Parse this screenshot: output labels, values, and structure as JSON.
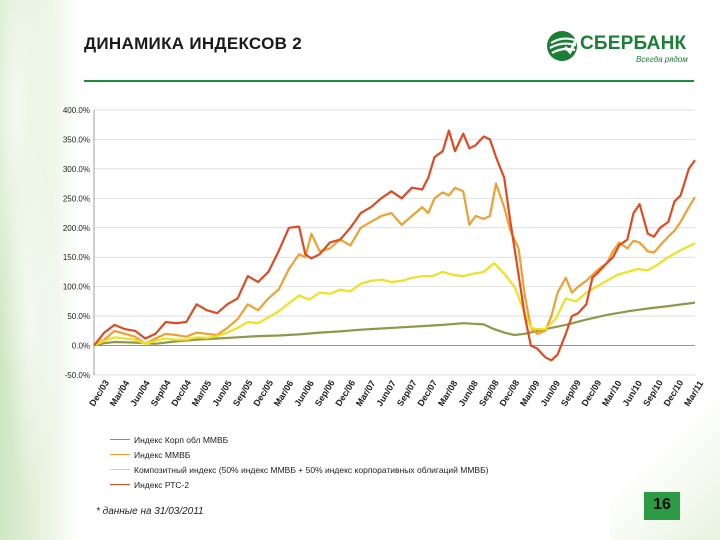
{
  "header": {
    "title": "ДИНАМИКА ИНДЕКСОВ 2",
    "brand": "СБЕРБАНК",
    "slogan": "Всегда рядом"
  },
  "colors": {
    "brand_green": "#1b7f35",
    "rule_green": "#1f8a3a",
    "badge_green": "#2d9a44"
  },
  "footnote": "* данные на 31/03/2011",
  "page_number": "16",
  "chart_data": {
    "type": "line",
    "title": "",
    "xlabel": "",
    "ylabel": "",
    "ylim": [
      -50,
      400
    ],
    "yticks": [
      "400.0%",
      "350.0%",
      "300.0%",
      "250.0%",
      "200.0%",
      "150.0%",
      "100.0%",
      "50.0%",
      "0.0%",
      "-50.0%"
    ],
    "xticks": [
      "Dec/03",
      "Mar/04",
      "Jun/04",
      "Sep/04",
      "Dec/04",
      "Mar/05",
      "Jun/05",
      "Sep/05",
      "Dec/05",
      "Mar/06",
      "Jun/06",
      "Sep/06",
      "Dec/06",
      "Mar/07",
      "Jun/07",
      "Sep/07",
      "Dec/07",
      "Mar/08",
      "Jun/08",
      "Sep/08",
      "Dec/08",
      "Mar/09",
      "Jun/09",
      "Sep/09",
      "Dec/09",
      "Mar/10",
      "Jun/10",
      "Sep/10",
      "Dec/10",
      "Mar/11"
    ],
    "x_range": [
      0,
      29.3
    ],
    "grid": "horizontal",
    "legend_position": "bottom",
    "series": [
      {
        "name": "Индекс Корп обл ММВБ",
        "color": "#8c9a48",
        "points": [
          [
            0,
            0
          ],
          [
            0.5,
            4
          ],
          [
            1,
            6
          ],
          [
            2,
            5
          ],
          [
            3,
            3
          ],
          [
            4,
            7
          ],
          [
            5,
            10
          ],
          [
            6,
            12
          ],
          [
            7,
            14
          ],
          [
            8,
            16
          ],
          [
            9,
            17
          ],
          [
            10,
            19
          ],
          [
            11,
            22
          ],
          [
            12,
            24
          ],
          [
            13,
            27
          ],
          [
            14,
            29
          ],
          [
            15,
            31
          ],
          [
            16,
            33
          ],
          [
            17,
            35
          ],
          [
            18,
            38
          ],
          [
            19,
            36
          ],
          [
            19.5,
            28
          ],
          [
            20,
            22
          ],
          [
            20.5,
            18
          ],
          [
            21,
            20
          ],
          [
            22,
            28
          ],
          [
            23,
            35
          ],
          [
            24,
            44
          ],
          [
            25,
            52
          ],
          [
            26,
            58
          ],
          [
            27,
            63
          ],
          [
            28,
            67
          ],
          [
            29.3,
            73
          ]
        ]
      },
      {
        "name": "Индекс ММВБ",
        "color": "#f0a030",
        "points": [
          [
            0,
            0
          ],
          [
            0.5,
            10
          ],
          [
            1,
            25
          ],
          [
            1.5,
            20
          ],
          [
            2,
            15
          ],
          [
            2.5,
            3
          ],
          [
            3,
            12
          ],
          [
            3.5,
            20
          ],
          [
            4,
            18
          ],
          [
            4.5,
            15
          ],
          [
            5,
            22
          ],
          [
            5.5,
            20
          ],
          [
            6,
            18
          ],
          [
            6.5,
            30
          ],
          [
            7,
            45
          ],
          [
            7.5,
            70
          ],
          [
            8,
            60
          ],
          [
            8.5,
            80
          ],
          [
            9,
            95
          ],
          [
            9.5,
            130
          ],
          [
            10,
            155
          ],
          [
            10.3,
            150
          ],
          [
            10.6,
            190
          ],
          [
            11,
            160
          ],
          [
            11.5,
            165
          ],
          [
            12,
            180
          ],
          [
            12.5,
            170
          ],
          [
            13,
            200
          ],
          [
            13.5,
            210
          ],
          [
            14,
            220
          ],
          [
            14.5,
            225
          ],
          [
            15,
            205
          ],
          [
            15.5,
            220
          ],
          [
            16,
            235
          ],
          [
            16.3,
            225
          ],
          [
            16.6,
            250
          ],
          [
            17,
            260
          ],
          [
            17.3,
            255
          ],
          [
            17.6,
            268
          ],
          [
            18,
            262
          ],
          [
            18.3,
            205
          ],
          [
            18.6,
            220
          ],
          [
            19,
            215
          ],
          [
            19.3,
            220
          ],
          [
            19.6,
            275
          ],
          [
            20,
            235
          ],
          [
            20.3,
            195
          ],
          [
            20.7,
            165
          ],
          [
            21,
            85
          ],
          [
            21.3,
            30
          ],
          [
            21.6,
            20
          ],
          [
            22,
            25
          ],
          [
            22.3,
            50
          ],
          [
            22.6,
            90
          ],
          [
            23,
            115
          ],
          [
            23.3,
            90
          ],
          [
            23.6,
            100
          ],
          [
            24,
            110
          ],
          [
            24.3,
            120
          ],
          [
            24.6,
            130
          ],
          [
            25,
            140
          ],
          [
            25.3,
            160
          ],
          [
            25.6,
            175
          ],
          [
            26,
            165
          ],
          [
            26.3,
            178
          ],
          [
            26.6,
            175
          ],
          [
            27,
            160
          ],
          [
            27.3,
            158
          ],
          [
            27.6,
            170
          ],
          [
            28,
            185
          ],
          [
            28.3,
            195
          ],
          [
            28.6,
            210
          ],
          [
            29,
            235
          ],
          [
            29.3,
            252
          ]
        ]
      },
      {
        "name": "Композитный индекс (50% индекс ММВБ + 50% индекс корпоративных облигаций ММВБ)",
        "color": "#f0e020",
        "points": [
          [
            0,
            0
          ],
          [
            0.5,
            8
          ],
          [
            1,
            14
          ],
          [
            1.5,
            12
          ],
          [
            2,
            10
          ],
          [
            2.5,
            3
          ],
          [
            3,
            8
          ],
          [
            3.5,
            12
          ],
          [
            4,
            10
          ],
          [
            4.5,
            10
          ],
          [
            5,
            14
          ],
          [
            5.5,
            13
          ],
          [
            6,
            16
          ],
          [
            6.5,
            22
          ],
          [
            7,
            30
          ],
          [
            7.5,
            40
          ],
          [
            8,
            38
          ],
          [
            8.5,
            48
          ],
          [
            9,
            58
          ],
          [
            9.5,
            72
          ],
          [
            10,
            85
          ],
          [
            10.5,
            78
          ],
          [
            11,
            90
          ],
          [
            11.5,
            88
          ],
          [
            12,
            95
          ],
          [
            12.5,
            92
          ],
          [
            13,
            105
          ],
          [
            13.5,
            110
          ],
          [
            14,
            112
          ],
          [
            14.5,
            108
          ],
          [
            15,
            110
          ],
          [
            15.5,
            115
          ],
          [
            16,
            118
          ],
          [
            16.5,
            118
          ],
          [
            17,
            125
          ],
          [
            17.5,
            120
          ],
          [
            18,
            118
          ],
          [
            18.5,
            122
          ],
          [
            19,
            125
          ],
          [
            19.5,
            140
          ],
          [
            20,
            122
          ],
          [
            20.5,
            100
          ],
          [
            21,
            55
          ],
          [
            21.3,
            30
          ],
          [
            21.6,
            28
          ],
          [
            22,
            28
          ],
          [
            22.5,
            45
          ],
          [
            23,
            80
          ],
          [
            23.5,
            75
          ],
          [
            24,
            90
          ],
          [
            24.5,
            100
          ],
          [
            25,
            110
          ],
          [
            25.5,
            120
          ],
          [
            26,
            125
          ],
          [
            26.5,
            130
          ],
          [
            27,
            128
          ],
          [
            27.5,
            138
          ],
          [
            28,
            150
          ],
          [
            28.5,
            160
          ],
          [
            29.3,
            174
          ]
        ]
      },
      {
        "name": "Индекс РТС-2",
        "color": "#e04a20",
        "points": [
          [
            0,
            0
          ],
          [
            0.5,
            22
          ],
          [
            1,
            35
          ],
          [
            1.5,
            28
          ],
          [
            2,
            25
          ],
          [
            2.5,
            12
          ],
          [
            3,
            20
          ],
          [
            3.5,
            40
          ],
          [
            4,
            38
          ],
          [
            4.5,
            40
          ],
          [
            5,
            70
          ],
          [
            5.5,
            60
          ],
          [
            6,
            55
          ],
          [
            6.5,
            70
          ],
          [
            7,
            80
          ],
          [
            7.5,
            118
          ],
          [
            8,
            108
          ],
          [
            8.5,
            125
          ],
          [
            9,
            160
          ],
          [
            9.5,
            200
          ],
          [
            10,
            202
          ],
          [
            10.3,
            155
          ],
          [
            10.6,
            148
          ],
          [
            11,
            155
          ],
          [
            11.5,
            175
          ],
          [
            12,
            180
          ],
          [
            12.5,
            200
          ],
          [
            13,
            225
          ],
          [
            13.5,
            235
          ],
          [
            14,
            250
          ],
          [
            14.5,
            262
          ],
          [
            15,
            250
          ],
          [
            15.5,
            268
          ],
          [
            16,
            265
          ],
          [
            16.3,
            285
          ],
          [
            16.6,
            320
          ],
          [
            17,
            330
          ],
          [
            17.3,
            365
          ],
          [
            17.6,
            330
          ],
          [
            18,
            360
          ],
          [
            18.3,
            335
          ],
          [
            18.6,
            340
          ],
          [
            19,
            355
          ],
          [
            19.3,
            350
          ],
          [
            19.6,
            320
          ],
          [
            20,
            285
          ],
          [
            20.3,
            210
          ],
          [
            20.7,
            120
          ],
          [
            21,
            50
          ],
          [
            21.3,
            0
          ],
          [
            21.6,
            -5
          ],
          [
            22,
            -20
          ],
          [
            22.3,
            -25
          ],
          [
            22.6,
            -15
          ],
          [
            23,
            20
          ],
          [
            23.3,
            50
          ],
          [
            23.6,
            55
          ],
          [
            24,
            70
          ],
          [
            24.3,
            115
          ],
          [
            24.6,
            125
          ],
          [
            25,
            140
          ],
          [
            25.3,
            150
          ],
          [
            25.6,
            170
          ],
          [
            26,
            180
          ],
          [
            26.3,
            225
          ],
          [
            26.6,
            240
          ],
          [
            27,
            190
          ],
          [
            27.3,
            185
          ],
          [
            27.6,
            200
          ],
          [
            28,
            210
          ],
          [
            28.3,
            245
          ],
          [
            28.6,
            255
          ],
          [
            29,
            300
          ],
          [
            29.3,
            315
          ]
        ]
      }
    ]
  }
}
